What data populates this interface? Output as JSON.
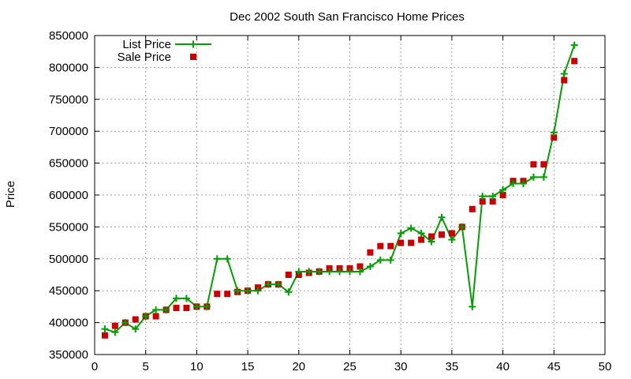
{
  "chart_data": {
    "type": "line",
    "title": "Dec 2002 South San Francisco Home Prices",
    "xlabel": "",
    "ylabel": "Price",
    "xlim": [
      0,
      50
    ],
    "ylim": [
      350000,
      850000
    ],
    "x_ticks": [
      0,
      5,
      10,
      15,
      20,
      25,
      30,
      35,
      40,
      45,
      50
    ],
    "y_ticks": [
      350000,
      400000,
      450000,
      500000,
      550000,
      600000,
      650000,
      700000,
      750000,
      800000,
      850000
    ],
    "x_tick_labels": [
      "0",
      "5",
      "10",
      "15",
      "20",
      "25",
      "30",
      "35",
      "40",
      "45",
      "50"
    ],
    "y_tick_labels": [
      "350000",
      "400000",
      "450000",
      "500000",
      "550000",
      "600000",
      "650000",
      "700000",
      "750000",
      "800000",
      "850000"
    ],
    "grid": true,
    "legend_position": "top-left",
    "colors": {
      "list": "#00a000",
      "sale": "#cc0000"
    },
    "x": [
      1,
      2,
      3,
      4,
      5,
      6,
      7,
      8,
      9,
      10,
      11,
      12,
      13,
      14,
      15,
      16,
      17,
      18,
      19,
      20,
      21,
      22,
      23,
      24,
      25,
      26,
      27,
      28,
      29,
      30,
      31,
      32,
      33,
      34,
      35,
      36,
      37,
      38,
      39,
      40,
      41,
      42,
      43,
      44,
      45,
      46,
      47
    ],
    "series": [
      {
        "name": "List Price",
        "style": "linespoints",
        "values": [
          390000,
          385000,
          400000,
          390000,
          410000,
          420000,
          420000,
          438000,
          438000,
          425000,
          425000,
          500000,
          500000,
          450000,
          450000,
          450000,
          460000,
          460000,
          448000,
          480000,
          480000,
          480000,
          480000,
          480000,
          480000,
          480000,
          488000,
          498000,
          498000,
          540000,
          548000,
          540000,
          527000,
          565000,
          530000,
          550000,
          425000,
          598000,
          598000,
          608000,
          618000,
          618000,
          628000,
          628000,
          698000,
          790000,
          835000
        ]
      },
      {
        "name": "Sale Price",
        "style": "points",
        "values": [
          380000,
          395000,
          400000,
          405000,
          410000,
          410000,
          420000,
          423000,
          423000,
          425000,
          425000,
          445000,
          445000,
          448000,
          450000,
          455000,
          460000,
          460000,
          475000,
          475000,
          478000,
          480000,
          485000,
          485000,
          485000,
          488000,
          510000,
          520000,
          520000,
          525000,
          525000,
          530000,
          535000,
          538000,
          540000,
          550000,
          578000,
          590000,
          590000,
          600000,
          622000,
          622000,
          648000,
          648000,
          690000,
          780000,
          810000
        ]
      }
    ]
  }
}
